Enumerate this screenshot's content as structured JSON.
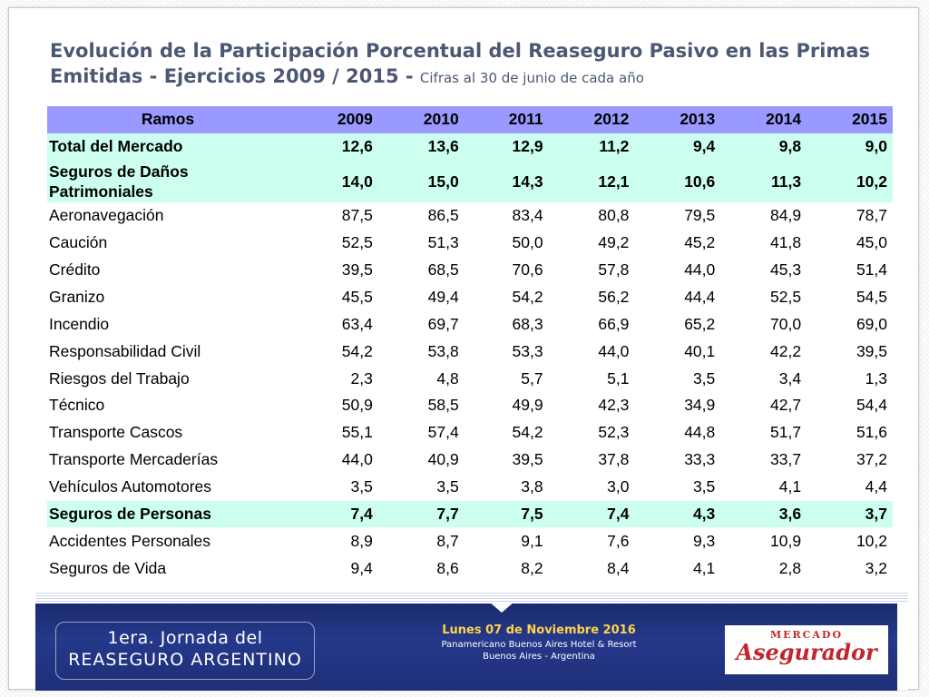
{
  "title": {
    "main": "Evolución de la Participación Porcentual del Reaseguro Pasivo en las Primas Emitidas - Ejercicios 2009 / 2015 - ",
    "subtitle": "Cifras al 30 de junio de cada año"
  },
  "table": {
    "headers": [
      "Ramos",
      "2009",
      "2010",
      "2011",
      "2012",
      "2013",
      "2014",
      "2015"
    ],
    "rows": [
      {
        "label": "Total del Mercado",
        "values": [
          "12,6",
          "13,6",
          "12,9",
          "11,2",
          "9,4",
          "9,8",
          "9,0"
        ],
        "summary": true
      },
      {
        "label": "Seguros de Daños Patrimoniales",
        "values": [
          "14,0",
          "15,0",
          "14,3",
          "12,1",
          "10,6",
          "11,3",
          "10,2"
        ],
        "summary": true,
        "tall": true
      },
      {
        "label": "Aeronavegación",
        "values": [
          "87,5",
          "86,5",
          "83,4",
          "80,8",
          "79,5",
          "84,9",
          "78,7"
        ]
      },
      {
        "label": "Caución",
        "values": [
          "52,5",
          "51,3",
          "50,0",
          "49,2",
          "45,2",
          "41,8",
          "45,0"
        ]
      },
      {
        "label": "Crédito",
        "values": [
          "39,5",
          "68,5",
          "70,6",
          "57,8",
          "44,0",
          "45,3",
          "51,4"
        ]
      },
      {
        "label": "Granizo",
        "values": [
          "45,5",
          "49,4",
          "54,2",
          "56,2",
          "44,4",
          "52,5",
          "54,5"
        ]
      },
      {
        "label": "Incendio",
        "values": [
          "63,4",
          "69,7",
          "68,3",
          "66,9",
          "65,2",
          "70,0",
          "69,0"
        ]
      },
      {
        "label": "Responsabilidad Civil",
        "values": [
          "54,2",
          "53,8",
          "53,3",
          "44,0",
          "40,1",
          "42,2",
          "39,5"
        ]
      },
      {
        "label": "Riesgos del Trabajo",
        "values": [
          "2,3",
          "4,8",
          "5,7",
          "5,1",
          "3,5",
          "3,4",
          "1,3"
        ]
      },
      {
        "label": "Técnico",
        "values": [
          "50,9",
          "58,5",
          "49,9",
          "42,3",
          "34,9",
          "42,7",
          "54,4"
        ]
      },
      {
        "label": "Transporte Cascos",
        "values": [
          "55,1",
          "57,4",
          "54,2",
          "52,3",
          "44,8",
          "51,7",
          "51,6"
        ]
      },
      {
        "label": "Transporte Mercaderías",
        "values": [
          "44,0",
          "40,9",
          "39,5",
          "37,8",
          "33,3",
          "33,7",
          "37,2"
        ]
      },
      {
        "label": "Vehículos Automotores",
        "values": [
          "3,5",
          "3,5",
          "3,8",
          "3,0",
          "3,5",
          "4,1",
          "4,4"
        ]
      },
      {
        "label": "Seguros de Personas",
        "values": [
          "7,4",
          "7,7",
          "7,5",
          "7,4",
          "4,3",
          "3,6",
          "3,7"
        ],
        "summary": true
      },
      {
        "label": "Accidentes Personales",
        "values": [
          "8,9",
          "8,7",
          "9,1",
          "7,6",
          "9,3",
          "10,9",
          "10,2"
        ]
      },
      {
        "label": "Seguros de Vida",
        "values": [
          "9,4",
          "8,6",
          "8,2",
          "8,4",
          "4,1",
          "2,8",
          "3,2"
        ]
      }
    ]
  },
  "banner": {
    "event_line1": "1era. Jornada del",
    "event_line2": "REASEGURO ARGENTINO",
    "date": "Lunes 07 de Noviembre 2016",
    "venue": "Panamericano Buenos Aires Hotel & Resort",
    "city": "Buenos Aires - Argentina",
    "logo_top": "MERCADO",
    "logo_main": "Asegurador"
  },
  "colors": {
    "title": "#4b5874",
    "header_bg": "#9999ff",
    "summary_bg": "#ccffee",
    "banner_bg": "#1e2f78",
    "logo_red": "#c0272d",
    "date_yellow": "#ffd44a"
  }
}
